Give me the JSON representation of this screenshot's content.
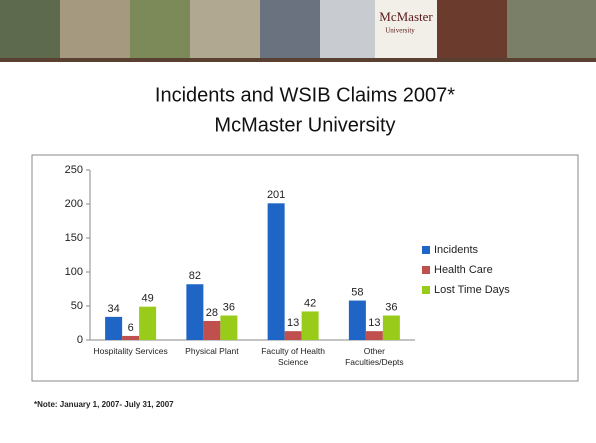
{
  "banner": {
    "logo": "McMaster",
    "logo_sub": "University"
  },
  "chart_data": {
    "type": "bar",
    "title": "Incidents and WSIB Claims 2007*",
    "subtitle": "McMaster University",
    "categories": [
      "Hospitality Services",
      "Physical Plant",
      "Faculty of Health Science",
      "Other Faculties/Depts"
    ],
    "series": [
      {
        "name": "Incidents",
        "color": "#1f65c6",
        "values": [
          34,
          82,
          201,
          58
        ]
      },
      {
        "name": "Health Care",
        "color": "#c0504d",
        "values": [
          6,
          28,
          13,
          13
        ]
      },
      {
        "name": "Lost Time Days",
        "color": "#99cc1a",
        "values": [
          49,
          36,
          42,
          36
        ]
      }
    ],
    "ylim": [
      0,
      250
    ],
    "yticks": [
      0,
      50,
      100,
      150,
      200,
      250
    ],
    "grid": false,
    "legend": "right"
  },
  "note": "*Note: January 1, 2007- July 31, 2007"
}
